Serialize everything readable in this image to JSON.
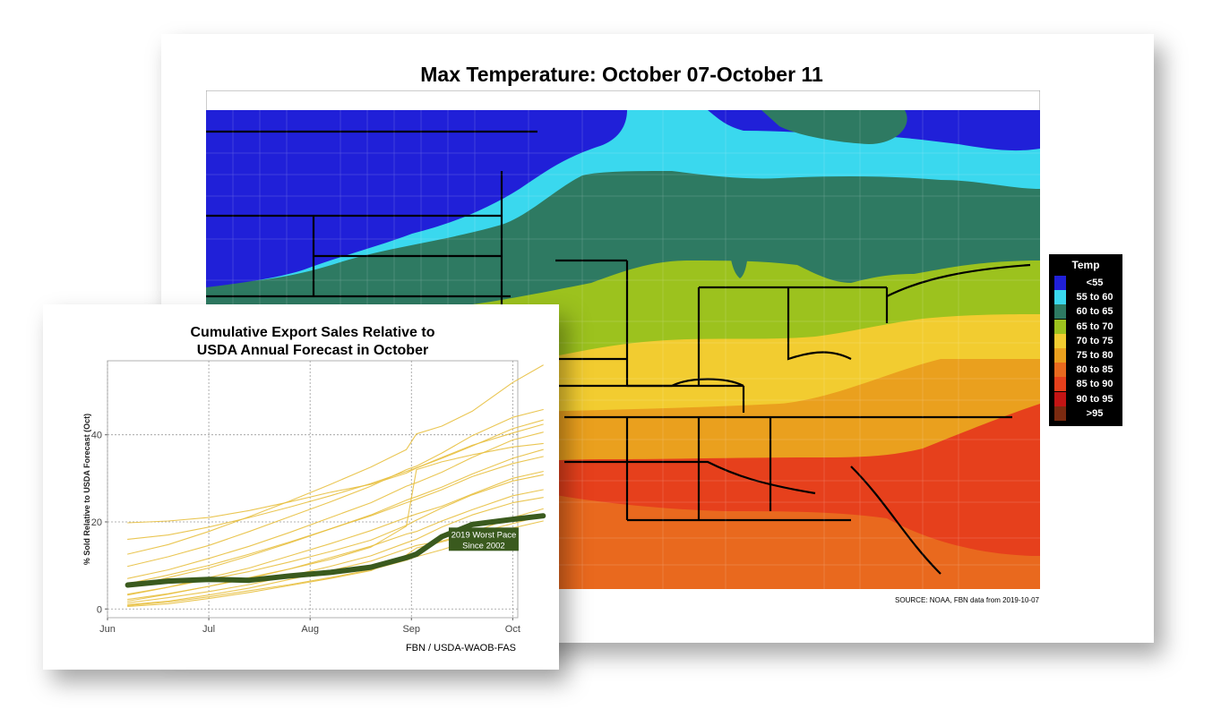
{
  "map": {
    "title": "Max Temperature: October 07-October 11",
    "source": "SOURCE: NOAA, FBN data from 2019-10-07",
    "legend": {
      "title": "Temp",
      "items": [
        {
          "label": "<55",
          "color": "#2020d8"
        },
        {
          "label": "55 to 60",
          "color": "#3ad8ee"
        },
        {
          "label": "60 to 65",
          "color": "#2e7a62"
        },
        {
          "label": "65 to 70",
          "color": "#9cc21e"
        },
        {
          "label": "70 to 75",
          "color": "#f2cc30"
        },
        {
          "label": "75 to 80",
          "color": "#eaa01e"
        },
        {
          "label": "80 to 85",
          "color": "#e9691e"
        },
        {
          "label": "85 to 90",
          "color": "#e6401c"
        },
        {
          "label": "90 to 95",
          "color": "#c31414"
        },
        {
          "label": ">95",
          "color": "#7a2a10"
        }
      ]
    }
  },
  "chart_data": [
    {
      "type": "line",
      "title": "Cumulative Export Sales Relative to USDA Annual Forecast in October",
      "title_lines": [
        "Cumulative Export Sales Relative to",
        "USDA Annual Forecast in October"
      ],
      "xlabel": "",
      "ylabel": "% Sold Relative to USDA Forecast (Oct)",
      "x_ticks": [
        "Jun",
        "Jul",
        "Aug",
        "Sep",
        "Oct"
      ],
      "x_tick_positions": [
        0,
        1,
        2,
        3,
        4
      ],
      "xlim": [
        0,
        4.05
      ],
      "y_ticks": [
        0,
        20,
        40
      ],
      "ylim": [
        -2,
        57
      ],
      "grid": true,
      "annotation": {
        "lines": [
          "2019 Worst Pace",
          "Since 2002"
        ],
        "x": 3.97,
        "y": 15
      },
      "credit": "FBN / USDA-WAOB-FAS",
      "highlight_color": "#3a5a1e",
      "other_color": "#e8c040",
      "x": [
        0.2,
        0.6,
        1.0,
        1.4,
        1.8,
        2.2,
        2.6,
        2.95,
        3.05,
        3.3,
        3.6,
        4.0,
        4.3
      ],
      "series": [
        {
          "name": "2019",
          "highlight": true,
          "values": [
            5.5,
            6.4,
            6.8,
            6.6,
            7.6,
            8.4,
            9.6,
            11.8,
            12.6,
            16.6,
            19.4,
            20.6,
            21.4
          ]
        },
        {
          "values": [
            1.0,
            1.8,
            3.2,
            4.8,
            6.8,
            8.8,
            11.0,
            13.8,
            14.6,
            15.6,
            17.6,
            21.0,
            23.0
          ]
        },
        {
          "values": [
            2.2,
            3.5,
            5.2,
            7.0,
            9.2,
            11.8,
            14.4,
            17.2,
            17.8,
            20.2,
            22.8,
            26.0,
            27.4
          ]
        },
        {
          "values": [
            3.2,
            5.0,
            7.2,
            9.4,
            12.2,
            15.0,
            18.0,
            21.0,
            21.8,
            23.6,
            26.4,
            30.0,
            31.6
          ]
        },
        {
          "values": [
            5.0,
            7.2,
            9.4,
            12.2,
            15.2,
            18.4,
            21.6,
            25.0,
            25.8,
            28.0,
            31.0,
            34.6,
            36.6
          ]
        },
        {
          "values": [
            7.0,
            9.0,
            11.6,
            14.4,
            17.6,
            21.0,
            24.4,
            28.2,
            29.0,
            31.4,
            34.8,
            38.8,
            40.6
          ]
        },
        {
          "values": [
            9.8,
            12.0,
            14.6,
            17.8,
            21.2,
            24.6,
            28.2,
            32.0,
            32.8,
            35.8,
            39.8,
            44.0,
            45.8
          ]
        },
        {
          "values": [
            12.6,
            14.8,
            17.8,
            21.2,
            24.8,
            28.6,
            32.6,
            36.6,
            40.2,
            42.0,
            45.4,
            52.0,
            56.0
          ]
        },
        {
          "values": [
            19.8,
            20.2,
            21.0,
            22.6,
            24.6,
            26.8,
            28.6,
            31.2,
            32.4,
            34.6,
            37.4,
            41.4,
            43.4
          ]
        },
        {
          "values": [
            16.0,
            17.0,
            18.8,
            21.0,
            23.4,
            26.0,
            28.8,
            31.6,
            32.4,
            34.8,
            37.6,
            40.4,
            42.4
          ]
        },
        {
          "values": [
            1.8,
            3.4,
            5.2,
            7.2,
            9.2,
            11.4,
            14.2,
            19.0,
            32.0,
            33.8,
            35.4,
            37.2,
            38.0
          ]
        },
        {
          "values": [
            3.4,
            5.0,
            6.8,
            8.6,
            10.8,
            13.2,
            15.8,
            19.2,
            20.4,
            23.2,
            26.2,
            29.4,
            30.8
          ]
        },
        {
          "values": [
            0.8,
            1.6,
            2.8,
            4.2,
            5.6,
            7.2,
            9.0,
            11.2,
            12.0,
            13.6,
            15.8,
            18.6,
            20.2
          ]
        },
        {
          "values": [
            1.4,
            2.6,
            4.0,
            5.6,
            7.6,
            9.8,
            12.2,
            15.2,
            16.0,
            18.8,
            21.6,
            24.4,
            25.6
          ]
        },
        {
          "values": [
            5.8,
            7.8,
            10.0,
            12.6,
            15.4,
            18.4,
            21.4,
            24.4,
            25.2,
            27.4,
            30.4,
            33.4,
            35.0
          ]
        },
        {
          "values": [
            0.6,
            1.2,
            2.4,
            3.8,
            5.4,
            7.0,
            8.8,
            12.4,
            14.0,
            15.4,
            17.2,
            19.6,
            21.4
          ]
        }
      ]
    }
  ]
}
